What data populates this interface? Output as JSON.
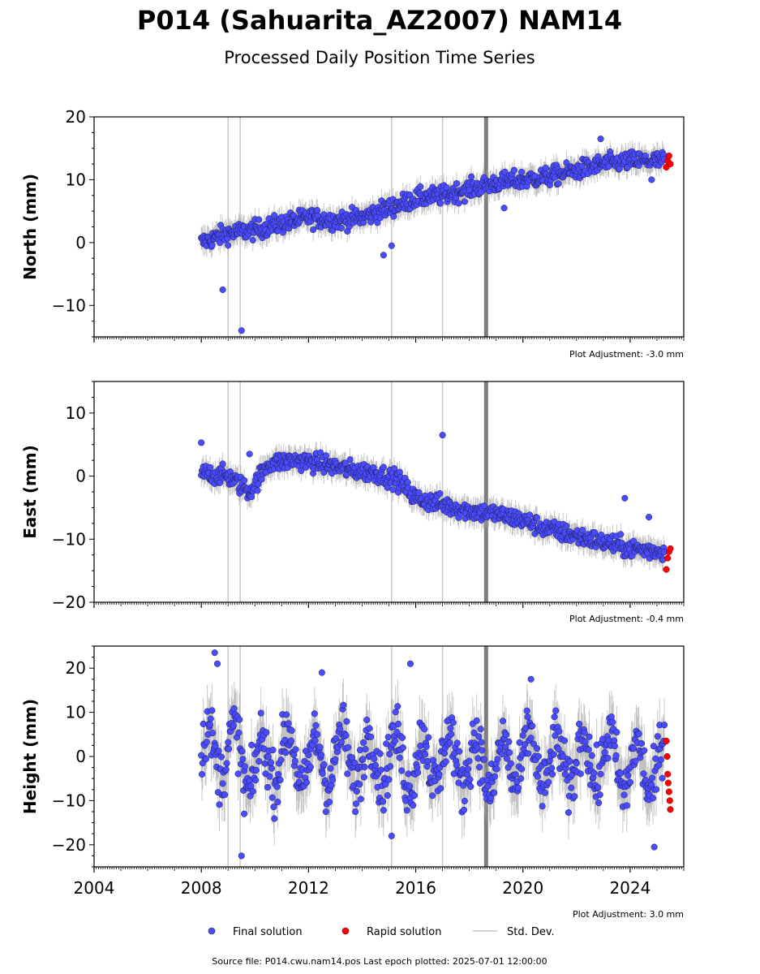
{
  "header": {
    "title": "P014 (Sahuarita_AZ2007) NAM14",
    "subtitle": "Processed Daily Position Time Series"
  },
  "chart_data": [
    {
      "type": "scatter",
      "ylabel": "North (mm)",
      "ylim": [
        -15,
        20
      ],
      "yticks": [
        -10,
        0,
        10,
        20
      ],
      "xlim": [
        2004,
        2026
      ],
      "xticks": [
        2004,
        2008,
        2012,
        2016,
        2020,
        2024
      ],
      "grid": false,
      "adjustment": "Plot Adjustment: -3.0 mm",
      "series": [
        {
          "name": "Final solution",
          "color": "#4b4bff",
          "x": [
            2008.0,
            2009.0,
            2010.0,
            2011.0,
            2012.0,
            2013.0,
            2014.0,
            2015.0,
            2016.0,
            2017.0,
            2018.0,
            2019.0,
            2020.0,
            2021.0,
            2022.0,
            2023.0,
            2024.0,
            2025.3
          ],
          "y": [
            0.0,
            1.5,
            2.0,
            3.0,
            4.0,
            3.5,
            4.0,
            5.5,
            7.0,
            7.5,
            8.5,
            9.5,
            10.0,
            10.5,
            11.5,
            12.5,
            13.0,
            13.0
          ]
        },
        {
          "name": "Rapid solution",
          "color": "#ff0000",
          "x": [
            2025.35,
            2025.4,
            2025.45,
            2025.5
          ],
          "y": [
            12.0,
            13.0,
            13.8,
            12.5
          ]
        }
      ],
      "outliers": {
        "x": [
          2008.8,
          2009.5,
          2014.8,
          2015.1,
          2019.3,
          2022.9,
          2024.8
        ],
        "y": [
          -7.5,
          -14.0,
          -2.0,
          -0.5,
          5.5,
          16.5,
          10.0
        ]
      }
    },
    {
      "type": "scatter",
      "ylabel": "East (mm)",
      "ylim": [
        -20,
        15
      ],
      "yticks": [
        -20,
        -10,
        0,
        10
      ],
      "xlim": [
        2004,
        2026
      ],
      "xticks": [
        2004,
        2008,
        2012,
        2016,
        2020,
        2024
      ],
      "grid": false,
      "adjustment": "Plot Adjustment: -0.4 mm",
      "series": [
        {
          "name": "Final solution",
          "color": "#4b4bff",
          "x": [
            2008.0,
            2009.0,
            2009.8,
            2010.5,
            2011.5,
            2012.5,
            2013.5,
            2014.5,
            2015.3,
            2016.0,
            2017.0,
            2018.0,
            2019.0,
            2020.0,
            2021.0,
            2022.0,
            2023.0,
            2024.0,
            2025.3
          ],
          "y": [
            0.5,
            0.0,
            -2.5,
            2.0,
            2.5,
            2.0,
            1.0,
            0.5,
            -0.5,
            -3.5,
            -4.5,
            -5.5,
            -6.0,
            -7.0,
            -8.5,
            -9.5,
            -10.5,
            -11.5,
            -12.0
          ]
        },
        {
          "name": "Rapid solution",
          "color": "#ff0000",
          "x": [
            2025.35,
            2025.4,
            2025.45,
            2025.5
          ],
          "y": [
            -14.8,
            -13.0,
            -12.0,
            -11.5
          ]
        }
      ],
      "outliers": {
        "x": [
          2008.0,
          2009.8,
          2017.0,
          2023.8,
          2024.7
        ],
        "y": [
          5.3,
          3.5,
          6.5,
          -3.5,
          -6.5
        ]
      }
    },
    {
      "type": "scatter",
      "ylabel": "Height (mm)",
      "ylim": [
        -25,
        25
      ],
      "yticks": [
        -20,
        -10,
        0,
        10,
        20
      ],
      "xlim": [
        2004,
        2026
      ],
      "xticks": [
        2004,
        2008,
        2012,
        2016,
        2020,
        2024
      ],
      "xticklabels": [
        "2004",
        "2008",
        "2012",
        "2016",
        "2020",
        "2024"
      ],
      "grid": false,
      "adjustment": "Plot Adjustment: 3.0 mm",
      "series": [
        {
          "name": "Final solution",
          "color": "#4b4bff",
          "x": [
            2008.0,
            2009.0,
            2010.0,
            2011.0,
            2012.0,
            2013.0,
            2014.0,
            2015.0,
            2016.0,
            2017.0,
            2018.0,
            2019.0,
            2020.0,
            2021.0,
            2022.0,
            2023.0,
            2024.0,
            2025.3
          ],
          "y": [
            0.0,
            2.0,
            -3.0,
            1.0,
            -2.0,
            0.0,
            -1.0,
            0.0,
            -2.0,
            0.0,
            -1.0,
            -3.0,
            0.0,
            -2.0,
            -1.0,
            0.0,
            -3.0,
            -2.0
          ]
        },
        {
          "name": "Rapid solution",
          "color": "#ff0000",
          "x": [
            2025.35,
            2025.38,
            2025.4,
            2025.42,
            2025.45,
            2025.48,
            2025.5
          ],
          "y": [
            3.5,
            0.0,
            -4.0,
            -6.0,
            -8.0,
            -10.0,
            -12.0
          ]
        }
      ],
      "outliers": {
        "x": [
          2008.5,
          2009.5,
          2012.5,
          2015.8,
          2020.3,
          2024.9,
          2008.6,
          2009.6,
          2015.1
        ],
        "y": [
          23.5,
          -22.5,
          19.0,
          21.0,
          17.5,
          -20.5,
          21.0,
          -13.0,
          -18.0
        ]
      }
    }
  ],
  "legend": {
    "final": "Final solution",
    "rapid": "Rapid solution",
    "stddev": "Std. Dev.",
    "placement": "bottom-center"
  },
  "colors": {
    "final": "#4b4bff",
    "rapid": "#ff0000",
    "stddev": "#d3d3d3",
    "band": "#666666"
  },
  "footer": {
    "source": "Source file: P014.cwu.nam14.pos  Last epoch plotted: 2025-07-01 12:00:00"
  }
}
